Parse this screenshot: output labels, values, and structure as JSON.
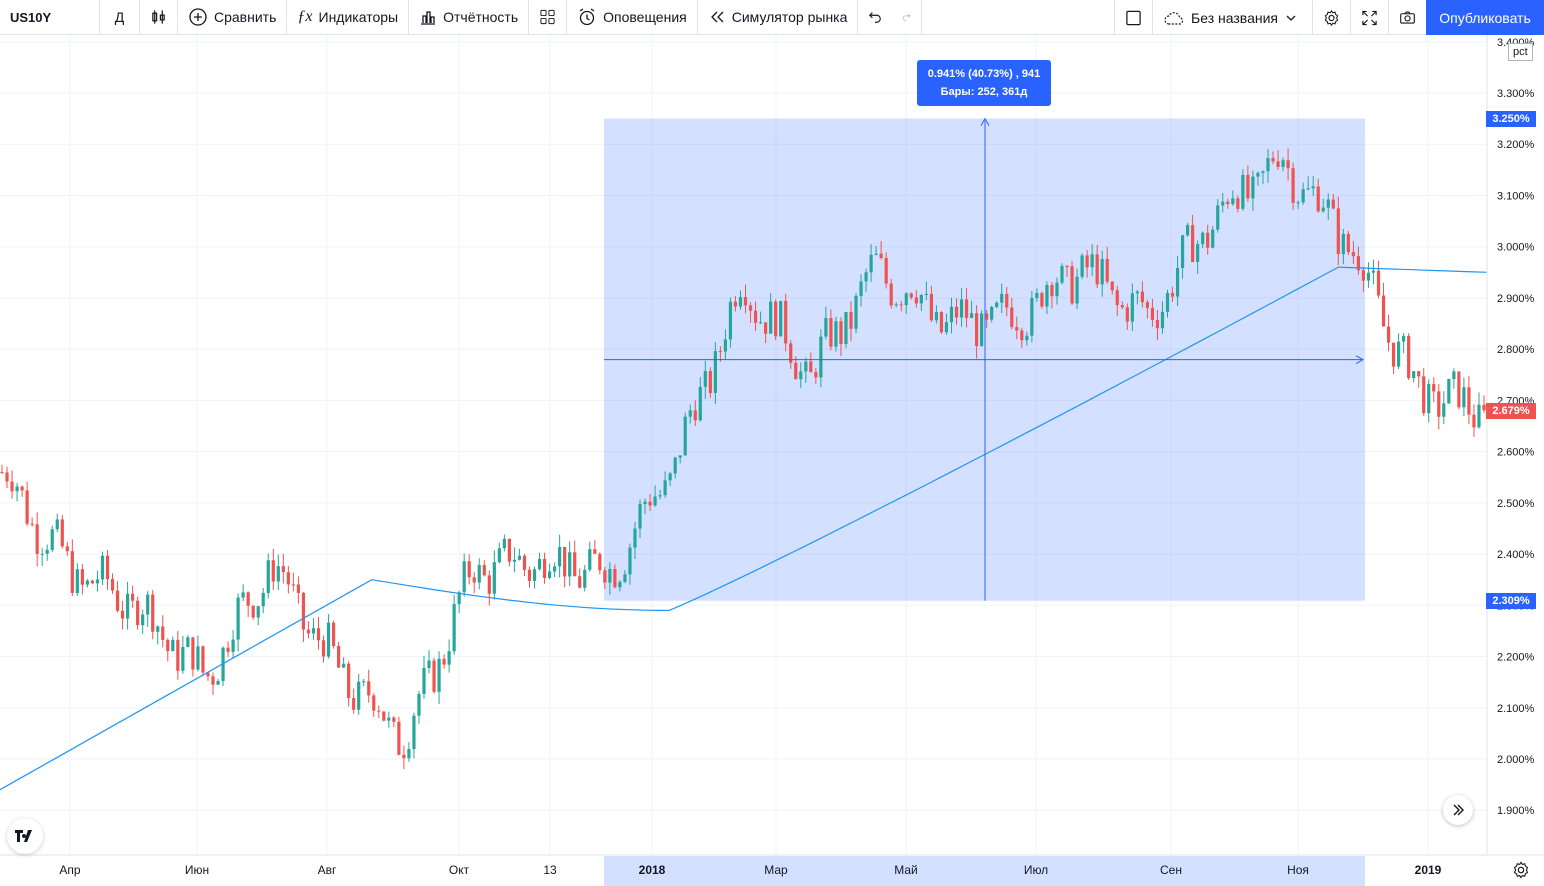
{
  "toolbar": {
    "symbol": "US10Y",
    "interval": "Д",
    "compare_label": "Сравнить",
    "indicators_label": "Индикаторы",
    "financials_label": "Отчётность",
    "alerts_label": "Оповещения",
    "replay_label": "Симулятор рынка",
    "layout_name": "Без названия",
    "publish_label": "Опубликовать"
  },
  "price_scale": {
    "unit": "pct",
    "labels": [
      "3.400%",
      "3.300%",
      "3.200%",
      "3.100%",
      "3.000%",
      "2.900%",
      "2.800%",
      "2.700%",
      "2.600%",
      "2.500%",
      "2.400%",
      "2.300%",
      "2.200%",
      "2.100%",
      "2.000%",
      "1.900%"
    ],
    "range_top_badge": "3.250%",
    "range_bottom_badge": "2.309%",
    "last_price_badge": "2.679%"
  },
  "time_scale": {
    "labels": [
      "Апр",
      "Июн",
      "Авг",
      "Окт",
      "13",
      "2018",
      "Мар",
      "Май",
      "Июл",
      "Сен",
      "Ноя",
      "2019"
    ]
  },
  "measure_tooltip": {
    "line1": "0.941% (40.73%) , 941",
    "line2": "Бары: 252, 361д"
  },
  "colors": {
    "up": "#26a69a",
    "down": "#ef5350",
    "ma": "#2196f3",
    "range_fill": "#2962ff",
    "accent": "#2962ff"
  },
  "chart_data": {
    "type": "candlestick",
    "series": [
      {
        "name": "",
        "points": [
          [
            "Мар 2017",
            2.56
          ],
          [
            "Апр",
            2.37
          ],
          [
            "Май",
            2.3
          ],
          [
            "Июн",
            2.16
          ],
          [
            "Июл",
            2.38
          ],
          [
            "Авг",
            2.17
          ],
          [
            "Сен",
            2.04
          ],
          [
            "Окт",
            2.37
          ],
          [
            "Ноя",
            2.39
          ],
          [
            "Дек",
            2.36
          ],
          [
            "Янв 2018",
            2.58
          ],
          [
            "Фев",
            2.93
          ],
          [
            "Мар",
            2.75
          ],
          [
            "Апр",
            2.96
          ],
          [
            "Май",
            2.85
          ],
          [
            "Июн",
            2.86
          ],
          [
            "Июл",
            2.96
          ],
          [
            "Авг",
            2.86
          ],
          [
            "Сен",
            3.06
          ],
          [
            "Окт",
            3.17
          ],
          [
            "Ноя",
            3.01
          ],
          [
            "Дек",
            2.72
          ],
          [
            "Янв 2019",
            2.68
          ]
        ]
      }
    ],
    "moving_average": {
      "name": "",
      "start": 1.94,
      "end": 2.95
    },
    "measure_range": {
      "from": 2.309,
      "to": 3.25,
      "change": "0.941% (40.73%)",
      "bars": 252,
      "days": 361
    },
    "ylim": [
      1.85,
      3.42
    ]
  }
}
